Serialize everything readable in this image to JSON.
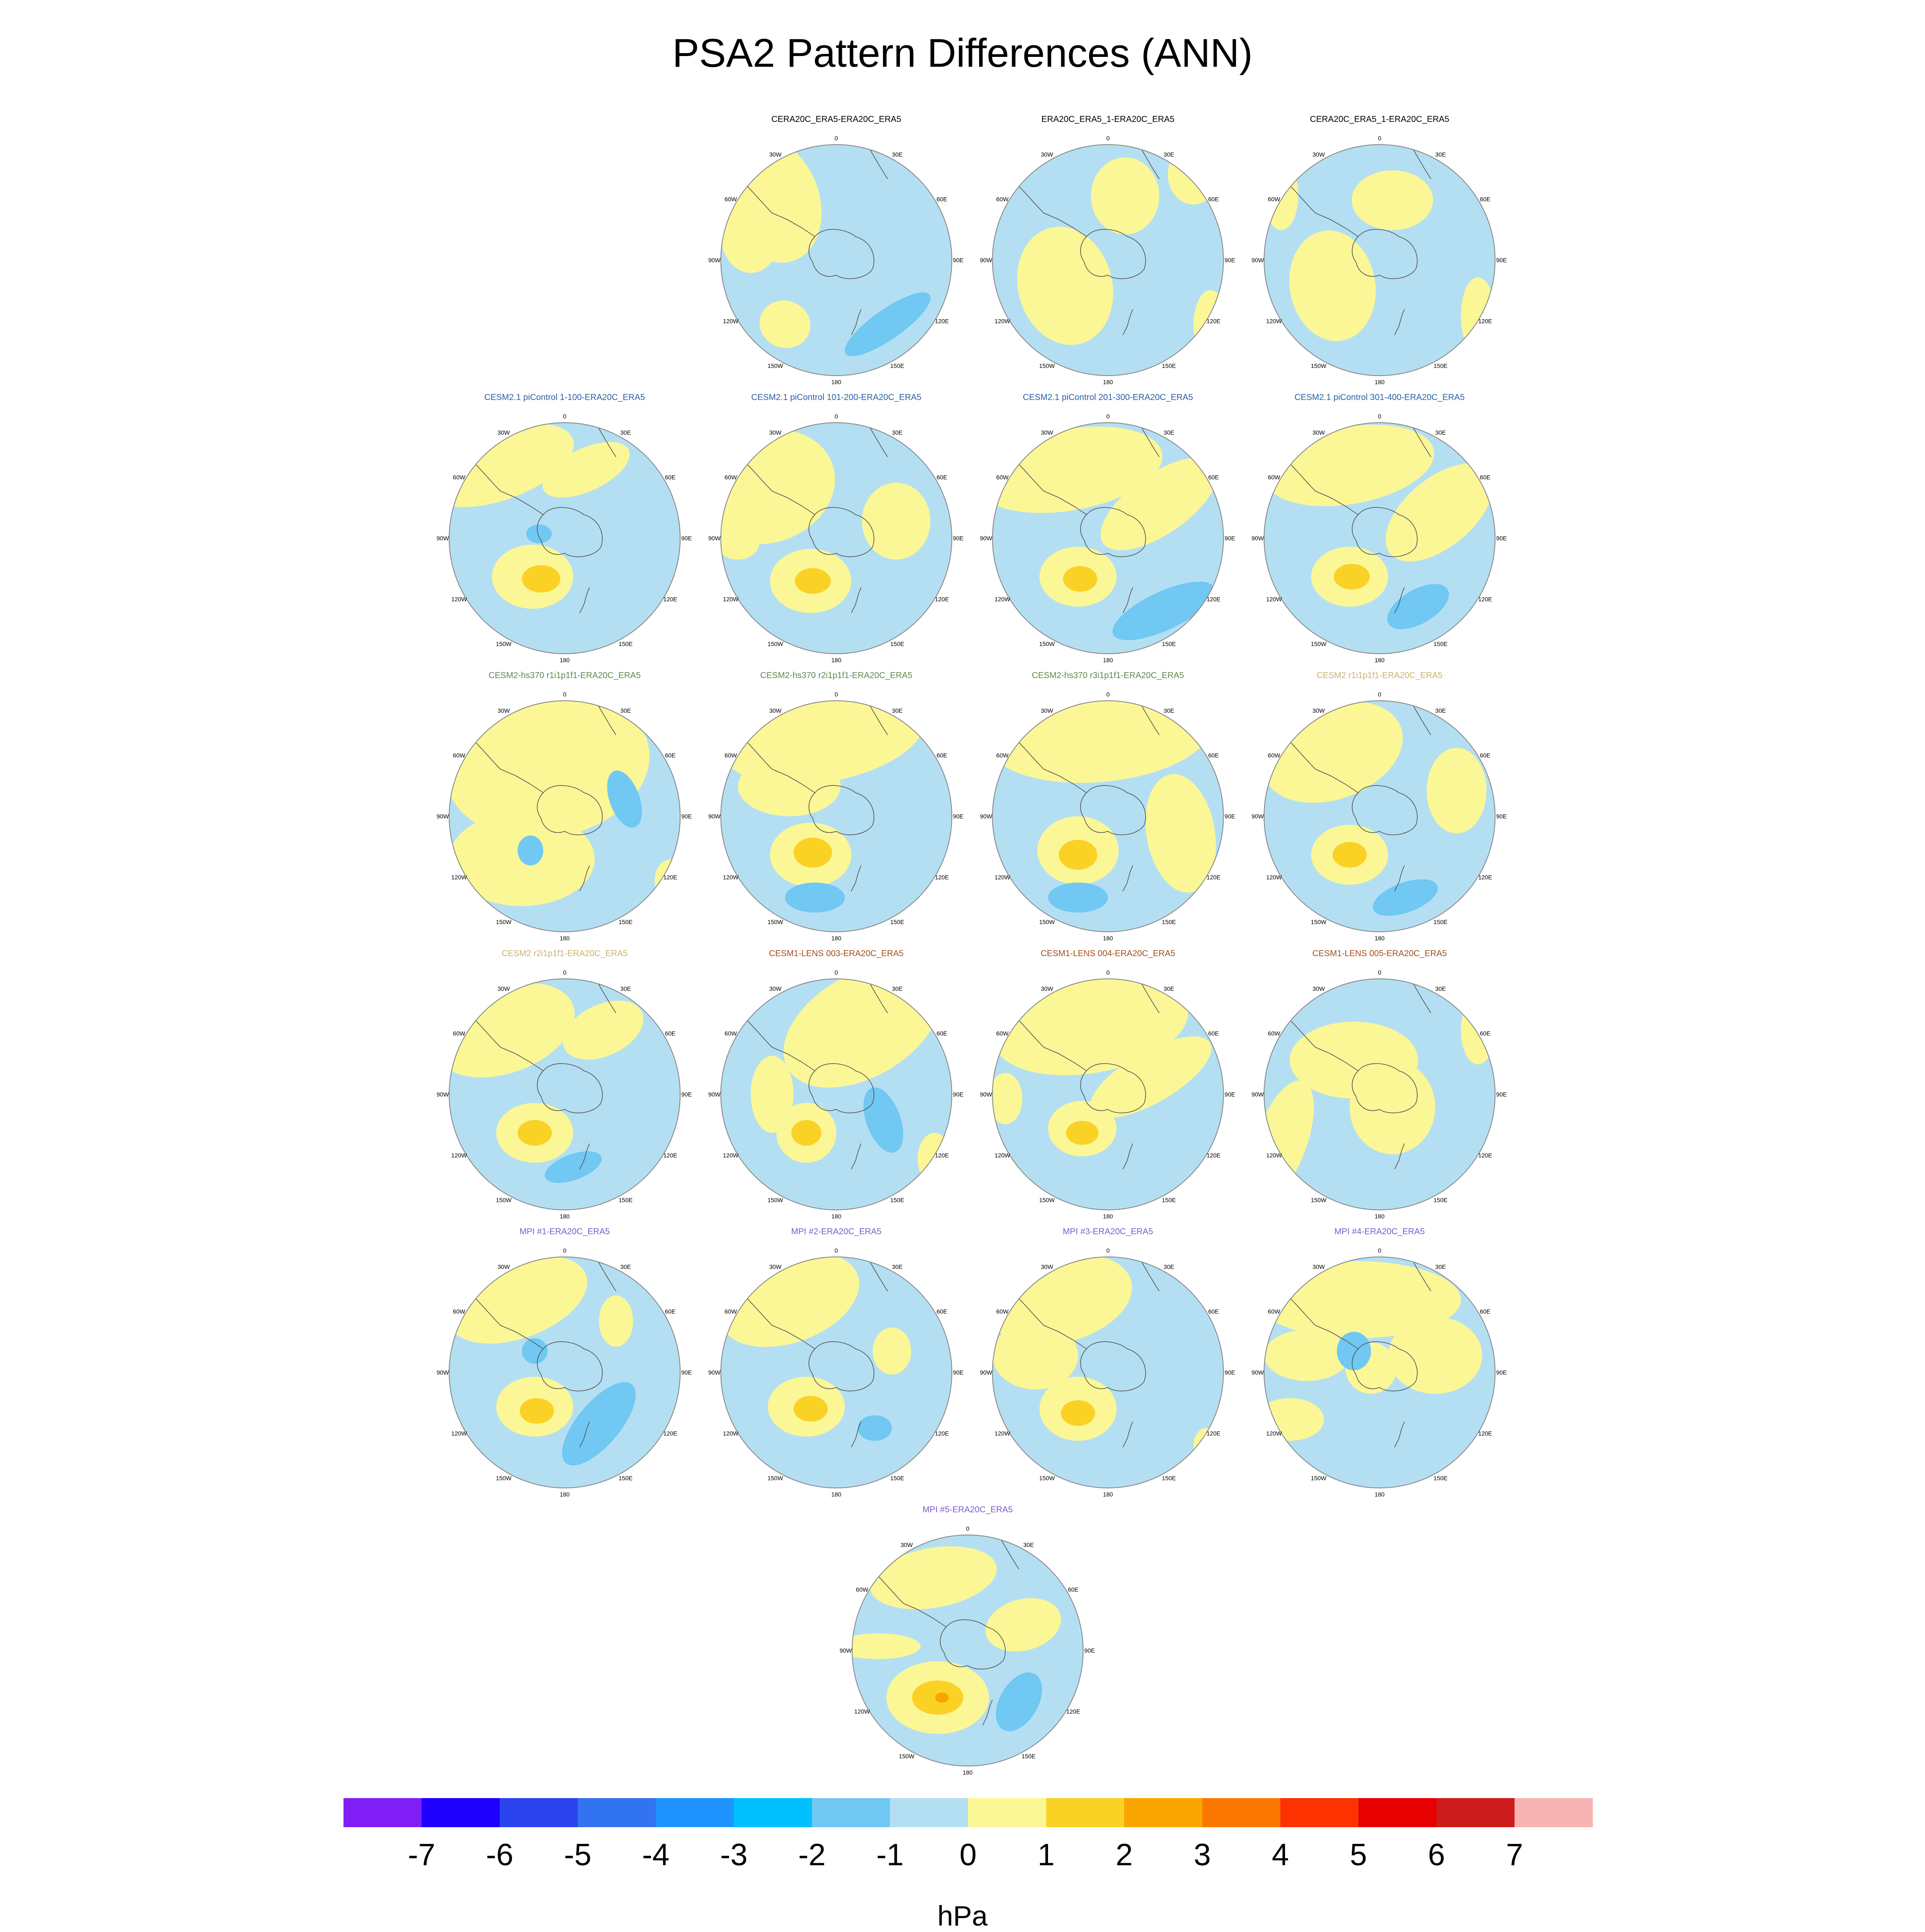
{
  "title": "PSA2 Pattern Differences (ANN)",
  "colorbar": {
    "unit": "hPa",
    "levels": [
      "-7",
      "-6",
      "-5",
      "-4",
      "-3",
      "-2",
      "-1",
      "0",
      "1",
      "2",
      "3",
      "4",
      "5",
      "6",
      "7"
    ],
    "colors": [
      "#7f1ff5",
      "#1f00ff",
      "#2b44ef",
      "#3273ef",
      "#1f94ff",
      "#00c0ff",
      "#70c8f3",
      "#b4dff3",
      "#fbf796",
      "#fad226",
      "#f9a600",
      "#fa7800",
      "#fc3200",
      "#e80000",
      "#cd1c1c",
      "#f8b3b3"
    ]
  },
  "map_style": {
    "ocean_fill": "#b4dff3",
    "positive_fill": "#fbf796",
    "strong_positive_fill": "#fad226",
    "stronger_positive_fill": "#f9a600",
    "negative_fill": "#70c8f3",
    "coast_color": "#555555",
    "longitude_labels": [
      "0",
      "30E",
      "60E",
      "90E",
      "120E",
      "150E",
      "180",
      "150W",
      "120W",
      "90W",
      "60W",
      "30W"
    ]
  },
  "panels": [
    {
      "title": "CERA20C_ERA5-ERA20C_ERA5",
      "title_color": "#000000"
    },
    {
      "title": "ERA20C_ERA5_1-ERA20C_ERA5",
      "title_color": "#000000"
    },
    {
      "title": "CERA20C_ERA5_1-ERA20C_ERA5",
      "title_color": "#000000"
    },
    {
      "title": "CESM2.1 piControl 1-100-ERA20C_ERA5",
      "title_color": "#2a5fa8"
    },
    {
      "title": "CESM2.1 piControl 101-200-ERA20C_ERA5",
      "title_color": "#2a5fa8"
    },
    {
      "title": "CESM2.1 piControl 201-300-ERA20C_ERA5",
      "title_color": "#2a5fa8"
    },
    {
      "title": "CESM2.1 piControl 301-400-ERA20C_ERA5",
      "title_color": "#2a5fa8"
    },
    {
      "title": "CESM2-hs370 r1i1p1f1-ERA20C_ERA5",
      "title_color": "#5e8a4e"
    },
    {
      "title": "CESM2-hs370 r2i1p1f1-ERA20C_ERA5",
      "title_color": "#5e8a4e"
    },
    {
      "title": "CESM2-hs370 r3i1p1f1-ERA20C_ERA5",
      "title_color": "#5e8a4e"
    },
    {
      "title": "CESM2 r1i1p1f1-ERA20C_ERA5",
      "title_color": "#c8b46e"
    },
    {
      "title": "CESM2 r2i1p1f1-ERA20C_ERA5",
      "title_color": "#c8b46e"
    },
    {
      "title": "CESM1-LENS 003-ERA20C_ERA5",
      "title_color": "#a0501e"
    },
    {
      "title": "CESM1-LENS 004-ERA20C_ERA5",
      "title_color": "#a0501e"
    },
    {
      "title": "CESM1-LENS 005-ERA20C_ERA5",
      "title_color": "#a0501e"
    },
    {
      "title": "MPI #1-ERA20C_ERA5",
      "title_color": "#7f5ad2"
    },
    {
      "title": "MPI #2-ERA20C_ERA5",
      "title_color": "#7f5ad2"
    },
    {
      "title": "MPI #3-ERA20C_ERA5",
      "title_color": "#7f5ad2"
    },
    {
      "title": "MPI #4-ERA20C_ERA5",
      "title_color": "#7f5ad2"
    },
    {
      "title": "MPI #5-ERA20C_ERA5",
      "title_color": "#7f5ad2"
    }
  ]
}
